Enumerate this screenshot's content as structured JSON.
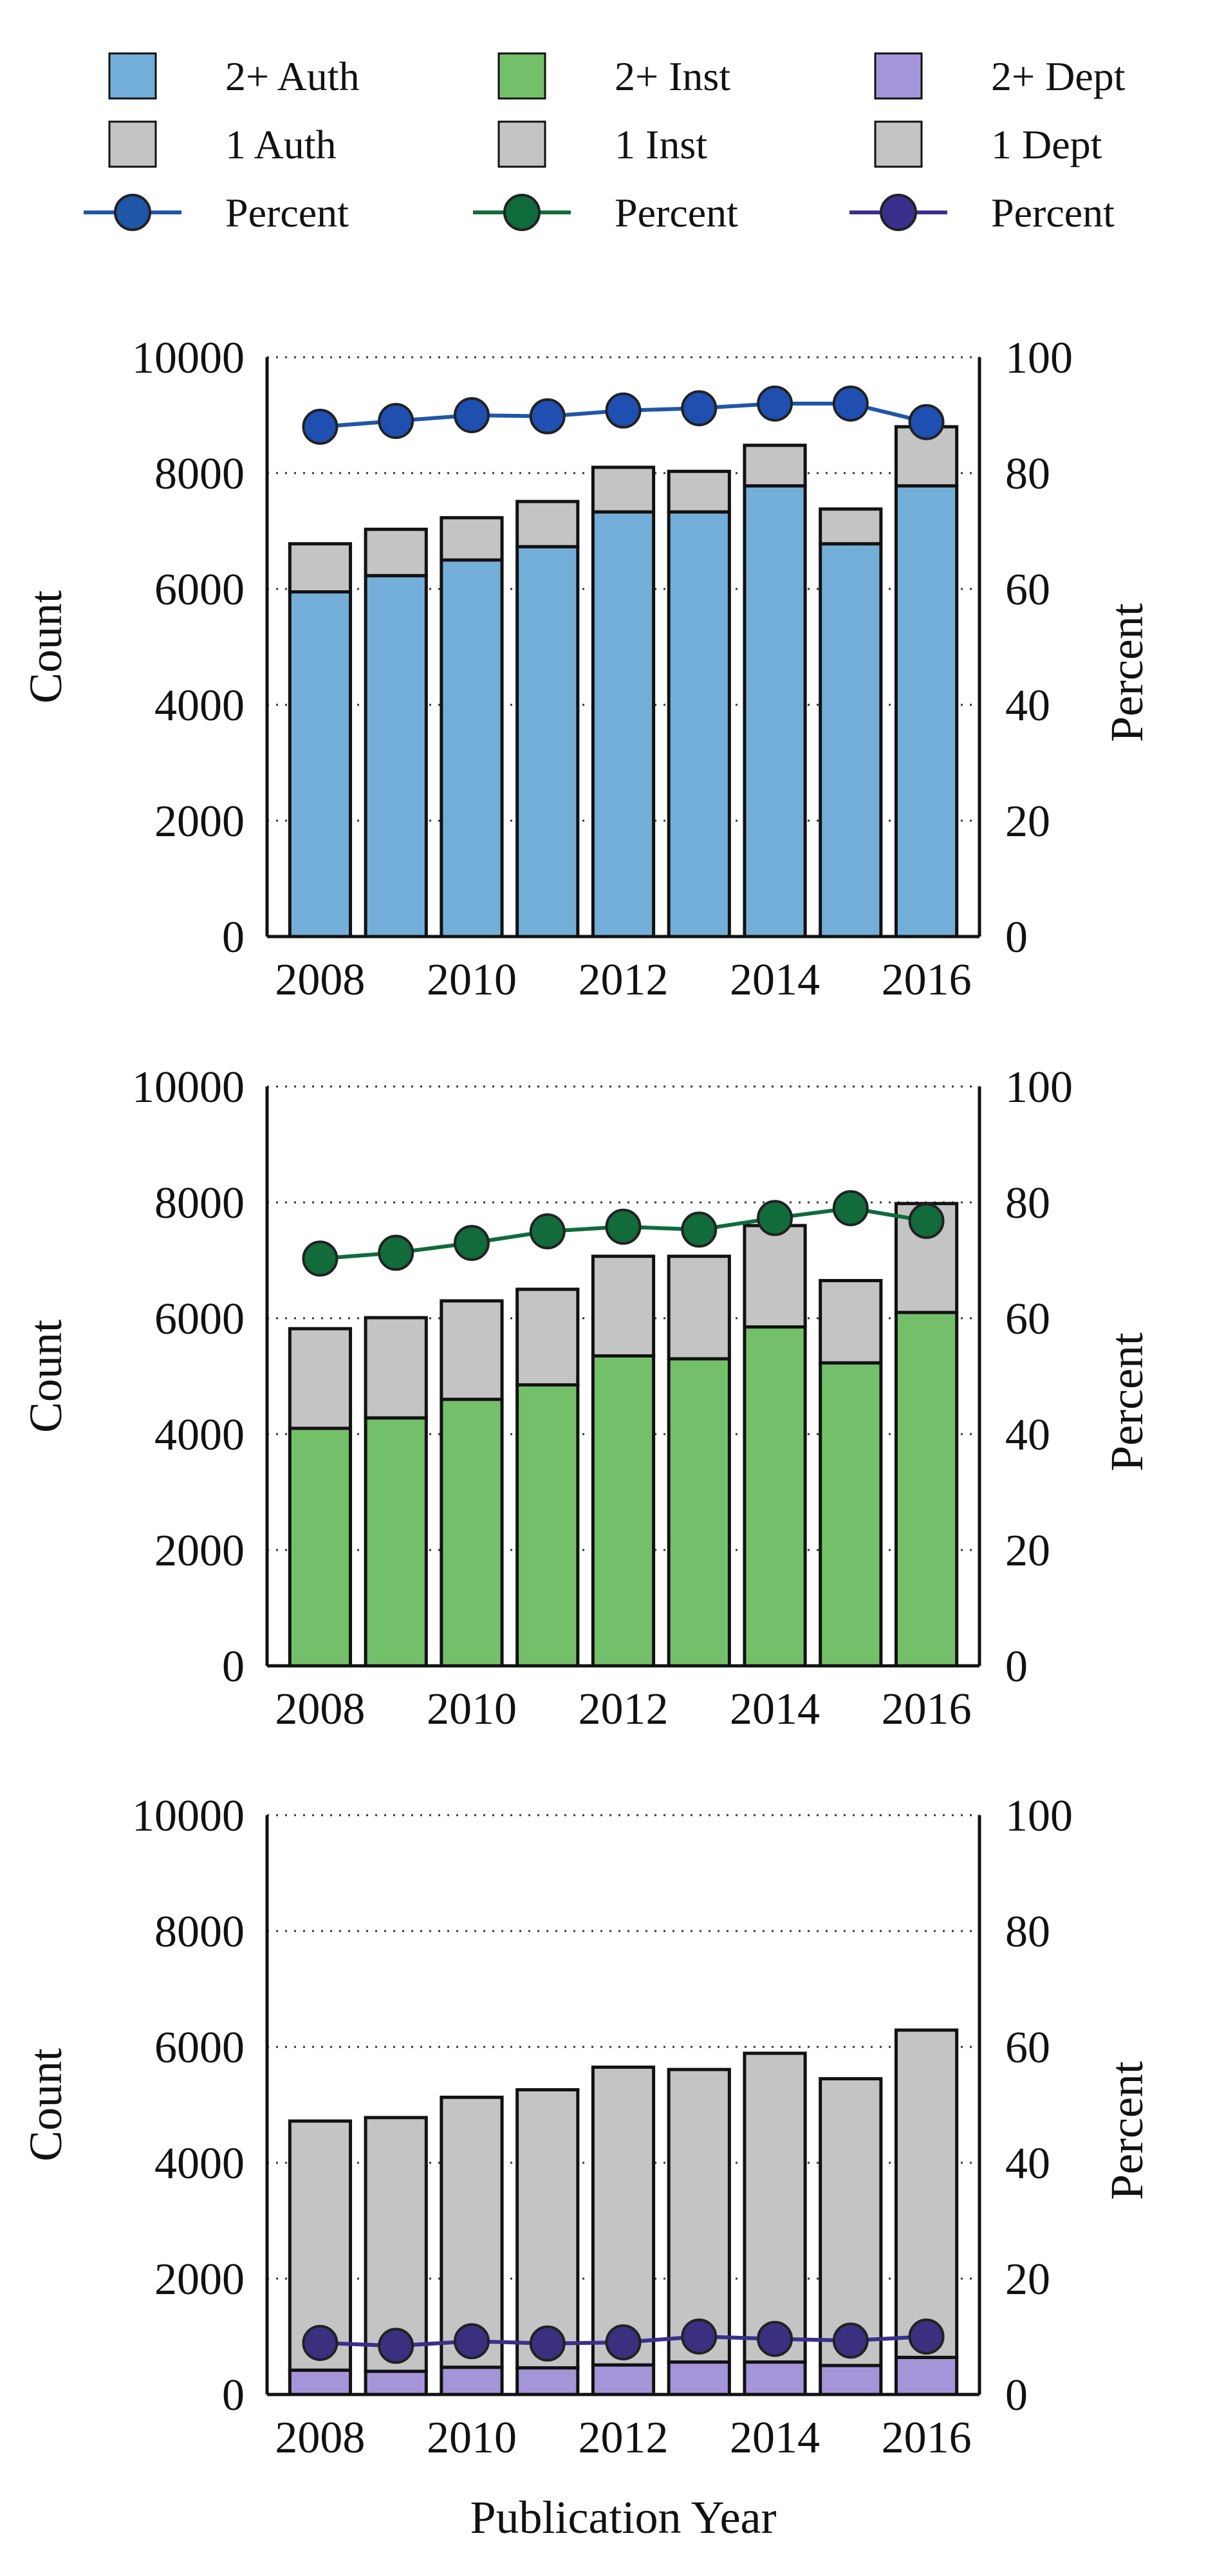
{
  "legend": {
    "items": [
      {
        "label": "2+ Auth",
        "kind": "box",
        "color": "#73aed8"
      },
      {
        "label": "2+ Inst",
        "kind": "box",
        "color": "#74c06a"
      },
      {
        "label": "2+ Dept",
        "kind": "box",
        "color": "#a494d8"
      },
      {
        "label": "1 Auth",
        "kind": "box",
        "color": "#c4c4c4"
      },
      {
        "label": "1 Inst",
        "kind": "box",
        "color": "#c4c4c4"
      },
      {
        "label": "1 Dept",
        "kind": "box",
        "color": "#c4c4c4"
      },
      {
        "label": "Percent",
        "kind": "line",
        "color": "#1f56a8"
      },
      {
        "label": "Percent",
        "kind": "line",
        "color": "#0f6b3c"
      },
      {
        "label": "Percent",
        "kind": "line",
        "color": "#3a2f8c"
      }
    ]
  },
  "chart_data": [
    {
      "type": "bar",
      "stacked": true,
      "categories": [
        2008,
        2009,
        2010,
        2011,
        2012,
        2013,
        2014,
        2015,
        2016
      ],
      "x_tick_labels": [
        "2008",
        "2010",
        "2012",
        "2014",
        "2016"
      ],
      "ylabel": "Count",
      "ylabel_right": "Percent",
      "ylim": [
        0,
        10000
      ],
      "ylim_right": [
        0,
        100
      ],
      "yticks": [
        "0",
        "2000",
        "4000",
        "6000",
        "8000",
        "10000"
      ],
      "yticks_right": [
        "0",
        "20",
        "40",
        "60",
        "80",
        "100"
      ],
      "grid": "dotted horizontal",
      "series": [
        {
          "name": "2+ Auth",
          "color": "#73aed8",
          "values": [
            5950,
            6230,
            6500,
            6730,
            7330,
            7330,
            7780,
            6780,
            7780
          ]
        },
        {
          "name": "1 Auth",
          "color": "#c4c4c4",
          "values": [
            830,
            800,
            730,
            780,
            770,
            700,
            700,
            600,
            1020
          ]
        }
      ],
      "line": {
        "name": "Percent",
        "color": "#1f56a8",
        "marker": "#1f4fb0",
        "values": [
          88,
          89,
          90,
          89.8,
          90.8,
          91.2,
          92,
          92,
          88.8
        ]
      }
    },
    {
      "type": "bar",
      "stacked": true,
      "categories": [
        2008,
        2009,
        2010,
        2011,
        2012,
        2013,
        2014,
        2015,
        2016
      ],
      "x_tick_labels": [
        "2008",
        "2010",
        "2012",
        "2014",
        "2016"
      ],
      "ylabel": "Count",
      "ylabel_right": "Percent",
      "ylim": [
        0,
        10000
      ],
      "ylim_right": [
        0,
        100
      ],
      "yticks": [
        "0",
        "2000",
        "4000",
        "6000",
        "8000",
        "10000"
      ],
      "yticks_right": [
        "0",
        "20",
        "40",
        "60",
        "80",
        "100"
      ],
      "grid": "dotted horizontal",
      "series": [
        {
          "name": "2+ Inst",
          "color": "#74c06a",
          "values": [
            4100,
            4280,
            4600,
            4850,
            5350,
            5300,
            5850,
            5230,
            6100
          ]
        },
        {
          "name": "1 Inst",
          "color": "#c4c4c4",
          "values": [
            1720,
            1730,
            1700,
            1650,
            1720,
            1770,
            1750,
            1420,
            1880
          ]
        }
      ],
      "line": {
        "name": "Percent",
        "color": "#0f6b3c",
        "marker": "#116b3a",
        "values": [
          70.3,
          71.3,
          73,
          75,
          75.8,
          75.3,
          77.3,
          79,
          76.8
        ]
      }
    },
    {
      "type": "bar",
      "stacked": true,
      "categories": [
        2008,
        2009,
        2010,
        2011,
        2012,
        2013,
        2014,
        2015,
        2016
      ],
      "x_tick_labels": [
        "2008",
        "2010",
        "2012",
        "2014",
        "2016"
      ],
      "xlabel": "Publication Year",
      "ylabel": "Count",
      "ylabel_right": "Percent",
      "ylim": [
        0,
        10000
      ],
      "ylim_right": [
        0,
        100
      ],
      "yticks": [
        "0",
        "2000",
        "4000",
        "6000",
        "8000",
        "10000"
      ],
      "yticks_right": [
        "0",
        "20",
        "40",
        "60",
        "80",
        "100"
      ],
      "grid": "dotted horizontal",
      "series": [
        {
          "name": "2+ Dept",
          "color": "#a494d8",
          "values": [
            420,
            400,
            470,
            460,
            510,
            560,
            560,
            500,
            640
          ]
        },
        {
          "name": "1 Dept",
          "color": "#c4c4c4",
          "values": [
            4300,
            4380,
            4660,
            4800,
            5140,
            5050,
            5330,
            4950,
            5650
          ]
        }
      ],
      "line": {
        "name": "Percent",
        "color": "#3a2f8c",
        "marker": "#3a307f",
        "values": [
          8.9,
          8.4,
          9.2,
          8.8,
          9.0,
          10.0,
          9.6,
          9.3,
          10.0
        ]
      }
    }
  ]
}
